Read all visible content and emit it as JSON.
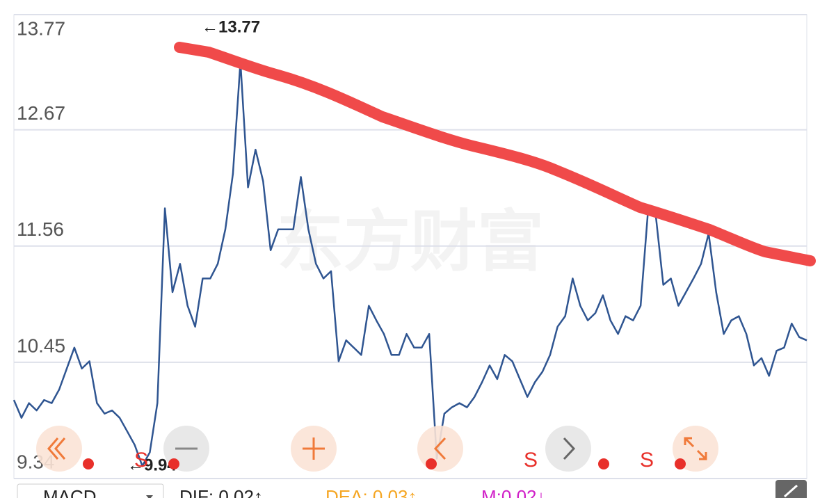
{
  "chart_data": {
    "type": "line",
    "series": [
      {
        "color": "#2f5591",
        "values": [
          10.09,
          9.92,
          10.06,
          9.99,
          10.09,
          10.06,
          10.19,
          10.39,
          10.59,
          10.39,
          10.46,
          10.06,
          9.96,
          9.99,
          9.92,
          9.79,
          9.66,
          9.46,
          9.59,
          10.06,
          11.92,
          11.12,
          11.39,
          10.99,
          10.79,
          11.25,
          11.25,
          11.39,
          11.72,
          12.25,
          13.32,
          12.12,
          12.48,
          12.18,
          11.52,
          11.72,
          11.72,
          11.72,
          12.22,
          11.72,
          11.39,
          11.25,
          11.32,
          10.46,
          10.66,
          10.59,
          10.52,
          10.99,
          10.85,
          10.72,
          10.52,
          10.52,
          10.72,
          10.59,
          10.59,
          10.72,
          9.53,
          9.96,
          10.02,
          10.06,
          10.02,
          10.12,
          10.26,
          10.42,
          10.29,
          10.52,
          10.46,
          10.29,
          10.12,
          10.26,
          10.36,
          10.52,
          10.79,
          10.89,
          11.25,
          10.99,
          10.85,
          10.92,
          11.09,
          10.85,
          10.72,
          10.89,
          10.85,
          10.99,
          11.92,
          11.85,
          11.19,
          11.25,
          10.99,
          11.12,
          11.25,
          11.39,
          11.68,
          11.12,
          10.72,
          10.85,
          10.89,
          10.72,
          10.42,
          10.49,
          10.32,
          10.56,
          10.59,
          10.82,
          10.69,
          10.66
        ]
      }
    ],
    "ylim": [
      9.34,
      13.77
    ],
    "yticks": [
      13.77,
      12.67,
      11.56,
      10.45,
      9.34
    ],
    "grid": true,
    "annotations": [
      "←13.77",
      "←9.94"
    ],
    "watermark": "东方财富",
    "signals": [
      "S",
      "S",
      "S"
    ],
    "indicator": {
      "name": "MACD",
      "dif": "DIF: 0.02↑",
      "dea": "DEA: 0.03↑",
      "m": "M:0.02↓"
    }
  }
}
